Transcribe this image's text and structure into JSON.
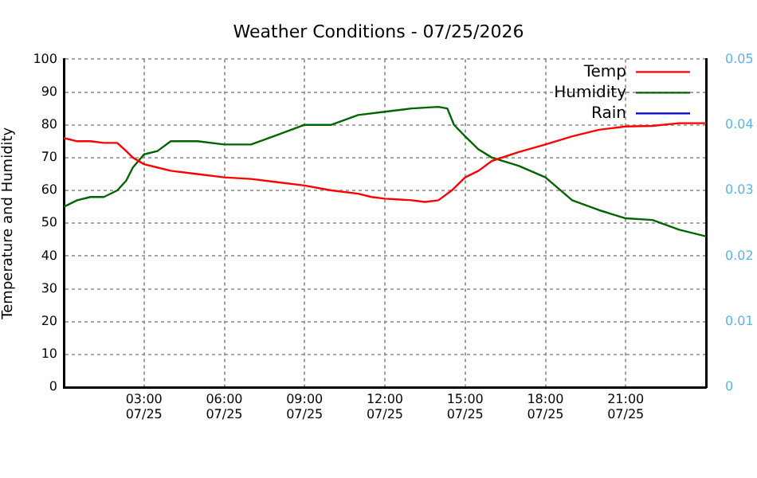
{
  "chart_data": {
    "type": "line",
    "title": "Weather Conditions - 07/25/2026",
    "ylabel": "Temperature and Humidity",
    "xlim": [
      "2026-07-25T00:00",
      "2026-07-26T00:00"
    ],
    "ylim": [
      0,
      100
    ],
    "y2lim": [
      0,
      0.05
    ],
    "xticks": [
      {
        "value": "2026-07-25T03:00",
        "label": "03:00\n07/25"
      },
      {
        "value": "2026-07-25T06:00",
        "label": "06:00\n07/25"
      },
      {
        "value": "2026-07-25T09:00",
        "label": "09:00\n07/25"
      },
      {
        "value": "2026-07-25T12:00",
        "label": "12:00\n07/25"
      },
      {
        "value": "2026-07-25T15:00",
        "label": "15:00\n07/25"
      },
      {
        "value": "2026-07-25T18:00",
        "label": "18:00\n07/25"
      },
      {
        "value": "2026-07-25T21:00",
        "label": "21:00\n07/25"
      }
    ],
    "yticks": [
      0,
      10,
      20,
      30,
      40,
      50,
      60,
      70,
      80,
      90,
      100
    ],
    "y2ticks": [
      0,
      0.01,
      0.02,
      0.03,
      0.04,
      0.05
    ],
    "grid": true,
    "legend": "top right",
    "marker": "none",
    "line_style": "solid",
    "series": [
      {
        "name": "Temp",
        "color": "#ff0000",
        "x": [
          "2026-07-25T00:00",
          "2026-07-25T00:30",
          "2026-07-25T01:00",
          "2026-07-25T01:30",
          "2026-07-25T02:00",
          "2026-07-25T02:20",
          "2026-07-25T02:35",
          "2026-07-25T03:00",
          "2026-07-25T03:30",
          "2026-07-25T04:00",
          "2026-07-25T05:00",
          "2026-07-25T06:00",
          "2026-07-25T07:00",
          "2026-07-25T08:00",
          "2026-07-25T09:00",
          "2026-07-25T10:00",
          "2026-07-25T11:00",
          "2026-07-25T11:30",
          "2026-07-25T12:00",
          "2026-07-25T13:00",
          "2026-07-25T13:30",
          "2026-07-25T14:00",
          "2026-07-25T14:30",
          "2026-07-25T15:00",
          "2026-07-25T15:30",
          "2026-07-25T16:00",
          "2026-07-25T17:00",
          "2026-07-25T18:00",
          "2026-07-25T19:00",
          "2026-07-25T20:00",
          "2026-07-25T21:00",
          "2026-07-25T22:00",
          "2026-07-25T23:00",
          "2026-07-26T00:00"
        ],
        "values": [
          76,
          75,
          75,
          74.5,
          74.5,
          72,
          70,
          68,
          67,
          66,
          65,
          64,
          63.5,
          62.5,
          61.5,
          60,
          59,
          58,
          57.5,
          57,
          56.5,
          57,
          60,
          64,
          66,
          69,
          71.7,
          74,
          76.5,
          78.5,
          79.5,
          79.7,
          80.5,
          80.5
        ]
      },
      {
        "name": "Humidity",
        "color": "#006400",
        "x": [
          "2026-07-25T00:00",
          "2026-07-25T00:30",
          "2026-07-25T01:00",
          "2026-07-25T01:30",
          "2026-07-25T02:00",
          "2026-07-25T02:20",
          "2026-07-25T02:35",
          "2026-07-25T03:00",
          "2026-07-25T03:30",
          "2026-07-25T04:00",
          "2026-07-25T05:00",
          "2026-07-25T06:00",
          "2026-07-25T07:00",
          "2026-07-25T08:00",
          "2026-07-25T09:00",
          "2026-07-25T10:00",
          "2026-07-25T11:00",
          "2026-07-25T12:00",
          "2026-07-25T13:00",
          "2026-07-25T14:00",
          "2026-07-25T14:20",
          "2026-07-25T14:35",
          "2026-07-25T15:00",
          "2026-07-25T15:30",
          "2026-07-25T16:00",
          "2026-07-25T17:00",
          "2026-07-25T18:00",
          "2026-07-25T19:00",
          "2026-07-25T20:00",
          "2026-07-25T21:00",
          "2026-07-25T22:00",
          "2026-07-25T23:00",
          "2026-07-26T00:00"
        ],
        "values": [
          55,
          57,
          58,
          58,
          60,
          63,
          67,
          71,
          72,
          75,
          75,
          74,
          74,
          77,
          80,
          80,
          83,
          84,
          85,
          85.5,
          85,
          80,
          76.5,
          72.5,
          70,
          67.5,
          64,
          57,
          54,
          51.5,
          51,
          48,
          46
        ]
      },
      {
        "name": "Rain",
        "color": "#0000cc"
      }
    ]
  }
}
